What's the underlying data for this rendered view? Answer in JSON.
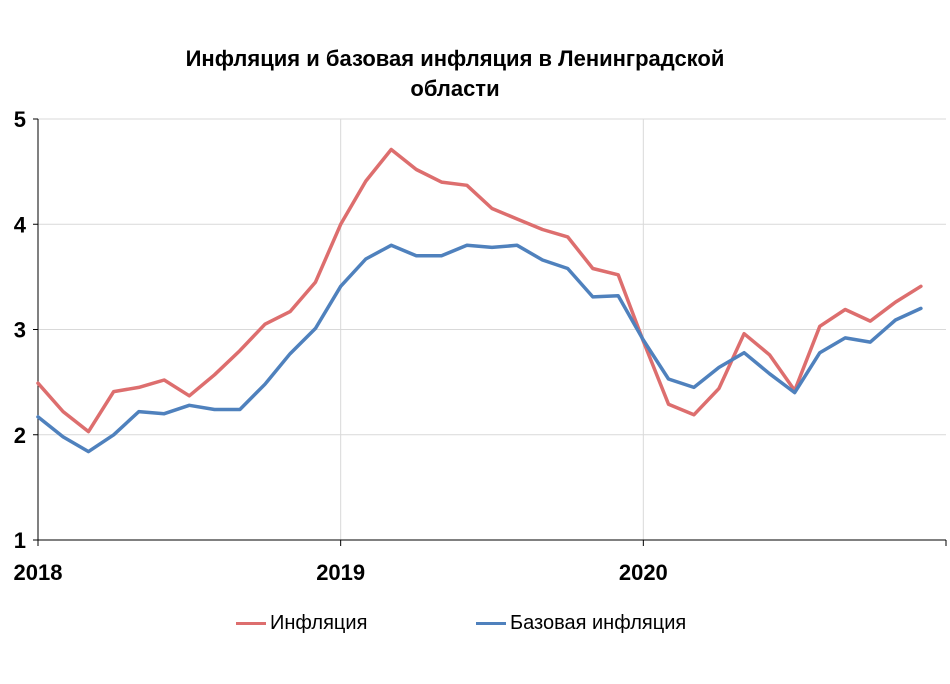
{
  "chart_data": {
    "type": "line",
    "title_lines": [
      "Инфляция и базовая инфляция в Ленинградской",
      "области"
    ],
    "xlabel": "",
    "ylabel": "",
    "ylim": [
      1,
      5
    ],
    "y_ticks": [
      "1",
      "2",
      "3",
      "4",
      "5"
    ],
    "x_ticks": [
      {
        "label": "2018",
        "x": 2018.0
      },
      {
        "label": "2019",
        "x": 2019.0
      },
      {
        "label": "2020",
        "x": 2020.0
      }
    ],
    "xlim": [
      2018.0,
      2021.0
    ],
    "grid": true,
    "legend_position": "bottom",
    "x": [
      2018.0,
      2018.083,
      2018.167,
      2018.25,
      2018.333,
      2018.417,
      2018.5,
      2018.583,
      2018.667,
      2018.75,
      2018.833,
      2018.917,
      2019.0,
      2019.083,
      2019.167,
      2019.25,
      2019.333,
      2019.417,
      2019.5,
      2019.583,
      2019.667,
      2019.75,
      2019.833,
      2019.917,
      2020.0,
      2020.083,
      2020.167,
      2020.25,
      2020.333,
      2020.417,
      2020.5,
      2020.583,
      2020.667,
      2020.75,
      2020.833,
      2020.917
    ],
    "series": [
      {
        "name": "Инфляция",
        "color": "#dd6e6e",
        "values": [
          2.49,
          2.22,
          2.03,
          2.41,
          2.45,
          2.52,
          2.37,
          2.57,
          2.8,
          3.05,
          3.17,
          3.45,
          4.0,
          4.41,
          4.71,
          4.52,
          4.4,
          4.37,
          4.15,
          4.05,
          3.95,
          3.88,
          3.58,
          3.52,
          2.89,
          2.29,
          2.19,
          2.44,
          2.96,
          2.76,
          2.42,
          3.03,
          3.19,
          3.08,
          3.26,
          3.41
        ]
      },
      {
        "name": "Базовая инфляция",
        "color": "#4f81bd",
        "values": [
          2.17,
          1.98,
          1.84,
          2.0,
          2.22,
          2.2,
          2.28,
          2.24,
          2.24,
          2.48,
          2.77,
          3.01,
          3.41,
          3.67,
          3.8,
          3.7,
          3.7,
          3.8,
          3.78,
          3.8,
          3.66,
          3.58,
          3.31,
          3.32,
          2.9,
          2.53,
          2.45,
          2.64,
          2.78,
          2.58,
          2.4,
          2.78,
          2.92,
          2.88,
          3.09,
          3.2
        ]
      }
    ]
  }
}
